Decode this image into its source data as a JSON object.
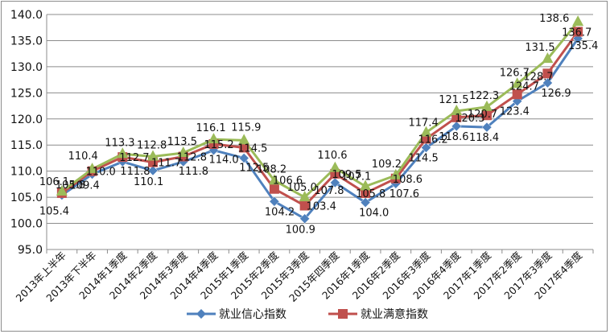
{
  "chart_data": {
    "type": "line",
    "categories": [
      "2013年上半年",
      "2013年下半年",
      "2014年1季度",
      "2014年2季度",
      "2014年3季度",
      "2014年4季度",
      "2015年1季度",
      "2015年2季度",
      "2015年3季度",
      "2015年四季度",
      "2016年1季度",
      "2016年2季度",
      "2016年3季度",
      "2016年4季度",
      "2017年1季度",
      "2017年2季度",
      "2017年3季度",
      "2017年4季度"
    ],
    "ylim": [
      95.0,
      140.0
    ],
    "yticks": [
      "95.0",
      "100.0",
      "105.0",
      "110.0",
      "115.0",
      "120.0",
      "125.0",
      "130.0",
      "135.0",
      "140.0"
    ],
    "grid": true,
    "legend_position": "bottom",
    "series": [
      {
        "name": "就业信心指数",
        "color": "#4f81bd",
        "marker": "diamond",
        "values": [
          105.4,
          109.4,
          111.8,
          110.1,
          111.8,
          114.0,
          112.5,
          104.2,
          100.9,
          107.8,
          104.0,
          107.6,
          114.5,
          118.6,
          118.4,
          123.4,
          126.9,
          135.4
        ],
        "labels": [
          "105.4",
          "109.4",
          "111.8",
          "110.1",
          "111.8",
          "114.0",
          "112.5",
          "104.2",
          "100.9",
          "107.8",
          "104.0",
          "107.6",
          "114.5",
          "118.6",
          "118.4",
          "123.4",
          "126.9",
          "135.4"
        ]
      },
      {
        "name": "就业满意指数",
        "color": "#c0504d",
        "marker": "square",
        "values": [
          105.8,
          110.0,
          112.7,
          111.7,
          112.8,
          115.2,
          114.5,
          106.6,
          103.4,
          109.5,
          105.8,
          108.6,
          116.2,
          120.3,
          120.7,
          124.7,
          128.7,
          136.7
        ],
        "labels": [
          "105.8",
          "110.0",
          "112.7",
          "111.7",
          "112.8",
          "115.2",
          "114.5",
          "106.6",
          "103.4",
          "109.5",
          "105.8",
          "108.6",
          "116.2",
          "120.3",
          "120.7",
          "124.7",
          "128.7",
          "136.7"
        ]
      },
      {
        "name": "",
        "color": "#9bbb59",
        "marker": "triangle",
        "values": [
          106.1,
          110.4,
          113.3,
          112.8,
          113.5,
          116.1,
          115.9,
          108.2,
          105.0,
          110.6,
          107.1,
          109.2,
          117.4,
          121.5,
          122.3,
          126.7,
          131.5,
          138.6
        ],
        "labels": [
          "106.1",
          "110.4",
          "113.3",
          "112.8",
          "113.5",
          "116.1",
          "115.9",
          "108.2",
          "105.0",
          "110.6",
          "107.1",
          "109.2",
          "117.4",
          "121.5",
          "122.3",
          "126.7",
          "131.5",
          "138.6"
        ]
      }
    ]
  }
}
